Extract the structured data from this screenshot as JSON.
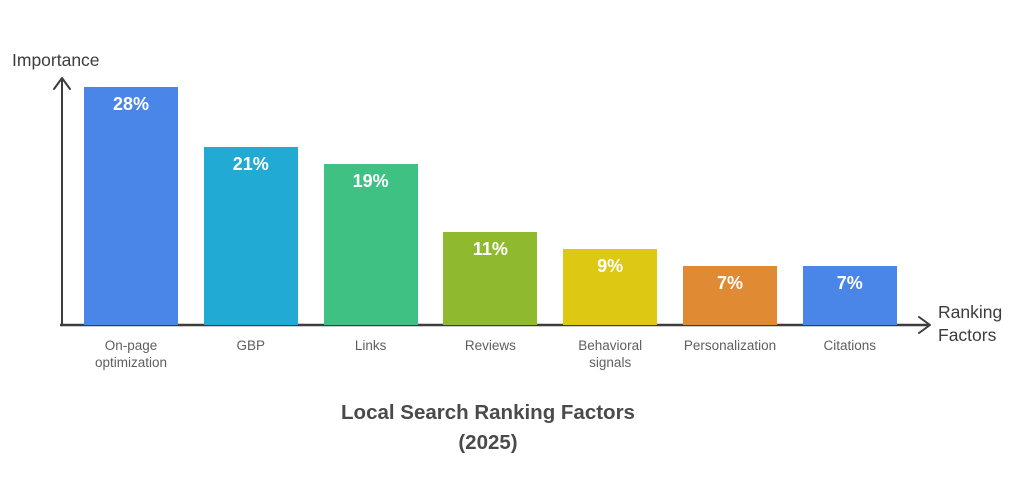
{
  "title": {
    "line1": "Local Search Ranking Factors",
    "line2": "(2025)"
  },
  "axes": {
    "y_axis_title": "Importance",
    "x_axis_title": "Ranking Factors",
    "axis_color": "#3d3d3d"
  },
  "chart_data": {
    "type": "bar",
    "title": "Local Search Ranking Factors (2025)",
    "xlabel": "Ranking Factors",
    "ylabel": "Importance",
    "categories": [
      "On-page optimization",
      "GBP",
      "Links",
      "Reviews",
      "Behavioral signals",
      "Personalization",
      "Citations"
    ],
    "category_lines": [
      [
        "On-page",
        "optimization"
      ],
      [
        "GBP"
      ],
      [
        "Links"
      ],
      [
        "Reviews"
      ],
      [
        "Behavioral",
        "signals"
      ],
      [
        "Personalization"
      ],
      [
        "Citations"
      ]
    ],
    "values": [
      28,
      21,
      19,
      11,
      9,
      7,
      7
    ],
    "value_labels": [
      "28%",
      "21%",
      "19%",
      "11%",
      "9%",
      "7%",
      "7%"
    ],
    "colors": [
      "#4a86e8",
      "#20aad4",
      "#3ec183",
      "#8fba2f",
      "#ddc814",
      "#e08a33",
      "#4a86e8"
    ],
    "ylim": [
      0,
      30
    ],
    "grid": false,
    "legend": "none",
    "value_label_color": "#ffffff",
    "category_label_color": "#5f5f5f"
  }
}
